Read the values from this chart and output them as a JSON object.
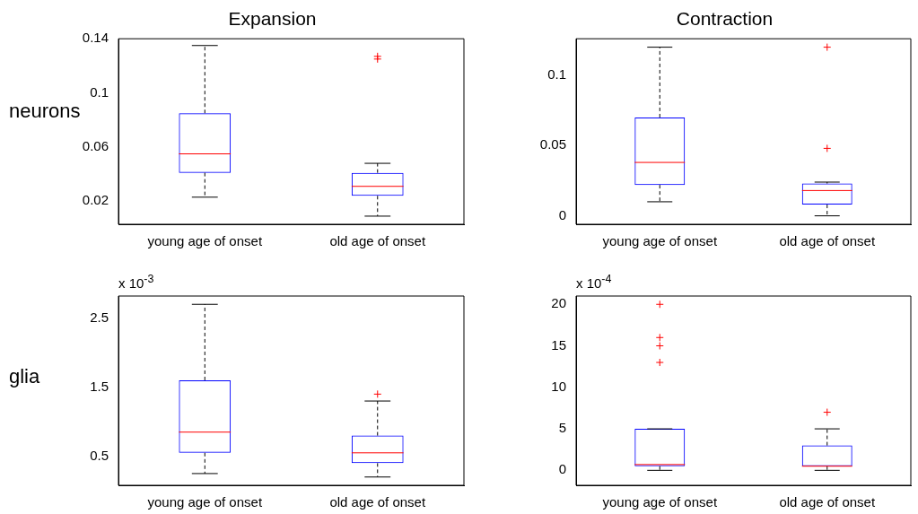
{
  "chart_data": [
    {
      "type": "box",
      "title": "Expansion",
      "ylabel": "neurons",
      "categories": [
        "young age of onset",
        "old age of onset"
      ],
      "color": "#0000ff",
      "ylim": [
        0.003,
        0.14
      ],
      "yticks": [
        0.02,
        0.06,
        {
          "value": 0.1,
          "label": "0.1"
        },
        0.14
      ],
      "boxes": [
        {
          "low": 0.023,
          "q1": 0.041,
          "median": 0.055,
          "q3": 0.085,
          "high": 0.135
        },
        {
          "low": 0.009,
          "q1": 0.024,
          "median": 0.031,
          "q3": 0.041,
          "high": 0.048,
          "outliers": [
            0.125,
            0.127
          ]
        }
      ]
    },
    {
      "type": "box",
      "title": "Contraction",
      "categories": [
        "young age of onset",
        "old age of onset"
      ],
      "color": "#0000ff",
      "ylim": [
        -0.006,
        0.126
      ],
      "yticks": [
        0,
        0.05,
        {
          "value": 0.1,
          "label": "0.1"
        }
      ],
      "boxes": [
        {
          "low": 0.01,
          "q1": 0.022,
          "median": 0.038,
          "q3": 0.07,
          "high": 0.12
        },
        {
          "low": 0,
          "q1": 0.008,
          "median": 0.018,
          "q3": 0.023,
          "high": 0.024,
          "outliers": [
            0.048,
            0.12
          ]
        }
      ]
    },
    {
      "type": "box",
      "ylabel": "glia",
      "annotations": [
        "x 10$^{-3}$"
      ],
      "categories": [
        "young age of onset",
        "old age of onset"
      ],
      "color": "#0000ff",
      "ylim": [
        0.08,
        2.82
      ],
      "yticks": [
        0.5,
        1.5,
        2.5
      ],
      "boxes": [
        {
          "low": 0.25,
          "q1": 0.55,
          "median": 0.85,
          "q3": 1.6,
          "high": 2.7
        },
        {
          "low": 0.2,
          "q1": 0.4,
          "median": 0.55,
          "q3": 0.8,
          "high": 1.3,
          "outliers": [
            1.4
          ]
        }
      ]
    },
    {
      "type": "box",
      "annotations": [
        "x 10$^{-4}$"
      ],
      "categories": [
        "young age of onset",
        "old age of onset"
      ],
      "color": "#0000ff",
      "ylim": [
        -1.8,
        21
      ],
      "yticks": [
        0,
        5,
        10,
        15,
        20
      ],
      "boxes": [
        {
          "low": 0,
          "q1": 0.5,
          "median": 0.7,
          "q3": 5,
          "high": 5,
          "outliers": [
            13,
            15,
            16,
            20
          ]
        },
        {
          "low": 0,
          "q1": 0.5,
          "median": 0.5,
          "q3": 3,
          "high": 5,
          "outliers": [
            7
          ]
        }
      ]
    }
  ]
}
